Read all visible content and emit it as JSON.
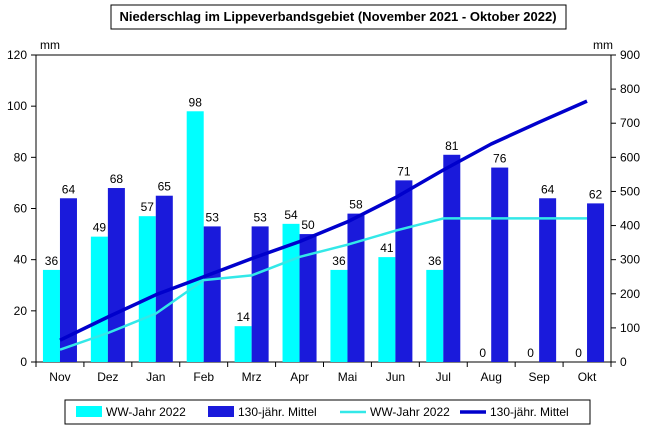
{
  "chart_data": {
    "type": "bar",
    "title": "Niederschlag im Lippeverbandsgebiet (November 2021 - Oktober 2022)",
    "ylabel_left": "mm",
    "ylabel_right": "mm",
    "categories": [
      "Nov",
      "Dez",
      "Jan",
      "Feb",
      "Mrz",
      "Apr",
      "Mai",
      "Jun",
      "Jul",
      "Aug",
      "Sep",
      "Okt"
    ],
    "ylim_left": [
      0,
      120
    ],
    "yticks_left": [
      0,
      20,
      40,
      60,
      80,
      100,
      120
    ],
    "ylim_right": [
      0,
      900
    ],
    "yticks_right": [
      0,
      100,
      200,
      300,
      400,
      500,
      600,
      700,
      800,
      900
    ],
    "grid": false,
    "legend_position": "bottom",
    "series": [
      {
        "name": "WW-Jahr 2022",
        "kind": "bar",
        "axis": "left",
        "color": "#00FFFF",
        "values": [
          36,
          49,
          57,
          98,
          14,
          54,
          36,
          41,
          36,
          0,
          0,
          0
        ],
        "labels": [
          "36",
          "49",
          "57",
          "98",
          "14",
          "54",
          "36",
          "41",
          "36",
          "0",
          "0",
          "0"
        ]
      },
      {
        "name": "130-jähr. Mittel",
        "kind": "bar",
        "axis": "left",
        "color": "#1A1ADB",
        "values": [
          64,
          68,
          65,
          53,
          53,
          50,
          58,
          71,
          81,
          76,
          64,
          62
        ],
        "labels": [
          "64",
          "68",
          "65",
          "53",
          "53",
          "50",
          "58",
          "71",
          "81",
          "76",
          "64",
          "62"
        ]
      },
      {
        "name": "WW-Jahr 2022",
        "kind": "line",
        "axis": "right",
        "color": "#33E8E8",
        "values": [
          36,
          85,
          142,
          240,
          254,
          308,
          344,
          385,
          421,
          421,
          421,
          421
        ]
      },
      {
        "name": "130-jähr. Mittel",
        "kind": "line",
        "axis": "right",
        "color": "#0000CC",
        "values": [
          64,
          132,
          197,
          250,
          303,
          353,
          411,
          482,
          563,
          639,
          703,
          765
        ]
      }
    ]
  }
}
